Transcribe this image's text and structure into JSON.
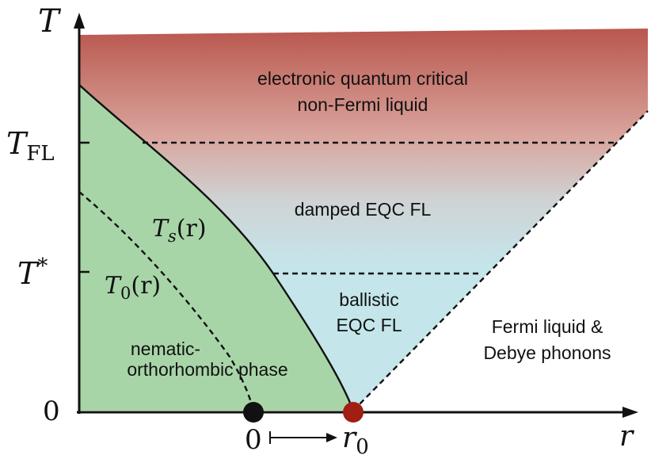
{
  "axes": {
    "y_symbol": "T",
    "x_symbol": "r",
    "y_ticks": {
      "t_fl_main": "T",
      "t_fl_sub": "FL",
      "t_star_main": "T",
      "t_star_sup": "*",
      "zero": "0"
    },
    "x_ticks": {
      "zero": "0",
      "r0_main": "r",
      "r0_sub": "0"
    }
  },
  "regions": {
    "top_line1": "electronic quantum critical",
    "top_line2": "non-Fermi liquid",
    "damped": "damped EQC FL",
    "ballistic_line1": "ballistic",
    "ballistic_line2": "EQC FL",
    "fermi_line1": "Fermi liquid &",
    "fermi_line2": "Debye phonons",
    "nematic_line1": "nematic-",
    "nematic_line2": "orthorhombic phase"
  },
  "curves": {
    "ts_main": "T",
    "ts_sub": "s",
    "ts_arg": "(r)",
    "t0_main": "T",
    "t0_sub": "0",
    "t0_arg": "(r)"
  },
  "colors": {
    "top_gradient": "#b9574e",
    "mid_gradient": "#cfd3d4",
    "critical_fan": "#c4e5ea",
    "nematic_phase": "#a8d5a8",
    "black_point": "#111111",
    "critical_point": "#a01e12"
  }
}
